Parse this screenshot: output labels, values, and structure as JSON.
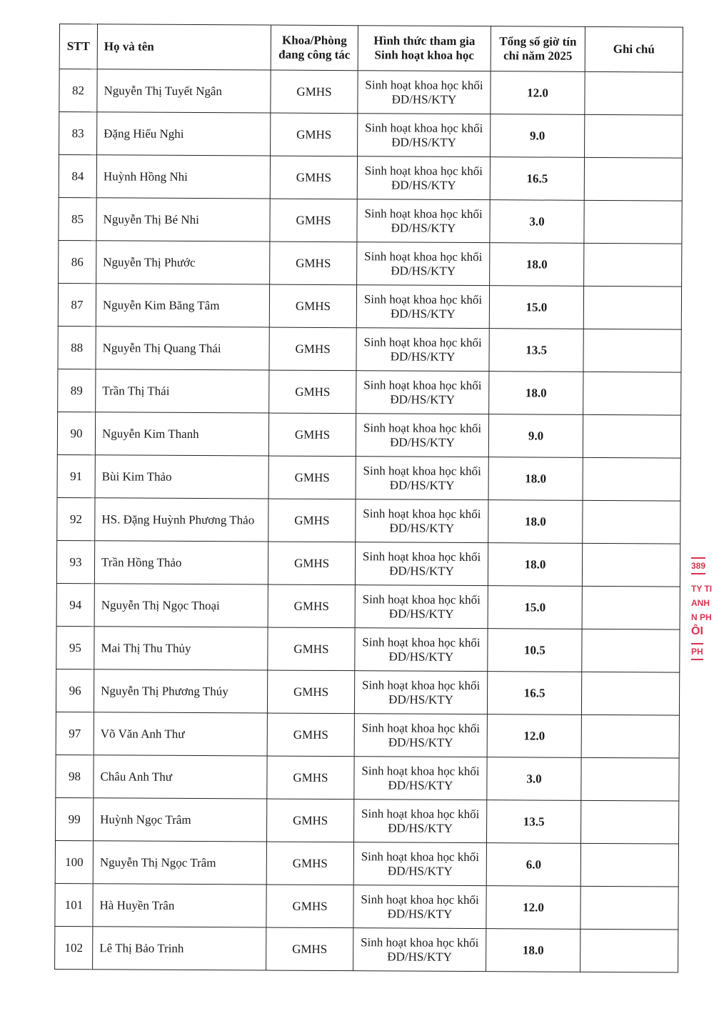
{
  "table": {
    "headers": {
      "stt": "STT",
      "name": "Họ và tên",
      "dept": "Khoa/Phòng đang công tác",
      "form": "Hình thức tham gia Sinh hoạt khoa học",
      "hours": "Tổng số giờ tín chỉ năm 2025",
      "note": "Ghi chú"
    },
    "rows": [
      {
        "stt": "82",
        "name": "Nguyễn Thị Tuyết Ngân",
        "dept": "GMHS",
        "form": "Sinh hoạt khoa học khối ĐD/HS/KTY",
        "hours": "12.0",
        "note": ""
      },
      {
        "stt": "83",
        "name": "Đặng Hiếu Nghi",
        "dept": "GMHS",
        "form": "Sinh hoạt khoa học khối ĐD/HS/KTY",
        "hours": "9.0",
        "note": ""
      },
      {
        "stt": "84",
        "name": "Huỳnh Hồng Nhi",
        "dept": "GMHS",
        "form": "Sinh hoạt khoa học khối ĐD/HS/KTY",
        "hours": "16.5",
        "note": ""
      },
      {
        "stt": "85",
        "name": "Nguyễn Thị Bé Nhi",
        "dept": "GMHS",
        "form": "Sinh hoạt khoa học khối ĐD/HS/KTY",
        "hours": "3.0",
        "note": ""
      },
      {
        "stt": "86",
        "name": "Nguyễn Thị Phước",
        "dept": "GMHS",
        "form": "Sinh hoạt khoa học khối ĐD/HS/KTY",
        "hours": "18.0",
        "note": ""
      },
      {
        "stt": "87",
        "name": "Nguyễn Kim Băng Tâm",
        "dept": "GMHS",
        "form": "Sinh hoạt khoa học khối ĐD/HS/KTY",
        "hours": "15.0",
        "note": ""
      },
      {
        "stt": "88",
        "name": "Nguyễn Thị Quang Thái",
        "dept": "GMHS",
        "form": "Sinh hoạt khoa học khối ĐD/HS/KTY",
        "hours": "13.5",
        "note": ""
      },
      {
        "stt": "89",
        "name": "Trần Thị Thái",
        "dept": "GMHS",
        "form": "Sinh hoạt khoa học khối ĐD/HS/KTY",
        "hours": "18.0",
        "note": ""
      },
      {
        "stt": "90",
        "name": "Nguyễn Kim Thanh",
        "dept": "GMHS",
        "form": "Sinh hoạt khoa học khối ĐD/HS/KTY",
        "hours": "9.0",
        "note": ""
      },
      {
        "stt": "91",
        "name": "Bùi Kim Thảo",
        "dept": "GMHS",
        "form": "Sinh hoạt khoa học khối ĐD/HS/KTY",
        "hours": "18.0",
        "note": ""
      },
      {
        "stt": "92",
        "name": "HS. Đặng Huỳnh Phương Thảo",
        "dept": "GMHS",
        "form": "Sinh hoạt khoa học khối ĐD/HS/KTY",
        "hours": "18.0",
        "note": ""
      },
      {
        "stt": "93",
        "name": "Trần Hồng Thảo",
        "dept": "GMHS",
        "form": "Sinh hoạt khoa học khối ĐD/HS/KTY",
        "hours": "18.0",
        "note": ""
      },
      {
        "stt": "94",
        "name": "Nguyễn Thị Ngọc Thoại",
        "dept": "GMHS",
        "form": "Sinh hoạt khoa học khối ĐD/HS/KTY",
        "hours": "15.0",
        "note": ""
      },
      {
        "stt": "95",
        "name": "Mai Thị Thu Thủy",
        "dept": "GMHS",
        "form": "Sinh hoạt khoa học khối ĐD/HS/KTY",
        "hours": "10.5",
        "note": ""
      },
      {
        "stt": "96",
        "name": "Nguyễn Thị Phương Thúy",
        "dept": "GMHS",
        "form": "Sinh hoạt khoa học khối ĐD/HS/KTY",
        "hours": "16.5",
        "note": ""
      },
      {
        "stt": "97",
        "name": "Võ Văn Anh Thư",
        "dept": "GMHS",
        "form": "Sinh hoạt khoa học khối ĐD/HS/KTY",
        "hours": "12.0",
        "note": ""
      },
      {
        "stt": "98",
        "name": "Châu Anh Thư",
        "dept": "GMHS",
        "form": "Sinh hoạt khoa học khối ĐD/HS/KTY",
        "hours": "3.0",
        "note": ""
      },
      {
        "stt": "99",
        "name": "Huỳnh Ngọc Trâm",
        "dept": "GMHS",
        "form": "Sinh hoạt khoa học khối ĐD/HS/KTY",
        "hours": "13.5",
        "note": ""
      },
      {
        "stt": "100",
        "name": "Nguyễn Thị Ngọc Trâm",
        "dept": "GMHS",
        "form": "Sinh hoạt khoa học khối ĐD/HS/KTY",
        "hours": "6.0",
        "note": ""
      },
      {
        "stt": "101",
        "name": "Hà Huyền Trân",
        "dept": "GMHS",
        "form": "Sinh hoạt khoa học khối ĐD/HS/KTY",
        "hours": "12.0",
        "note": ""
      },
      {
        "stt": "102",
        "name": "Lê Thị Bảo Trinh",
        "dept": "GMHS",
        "form": "Sinh hoạt khoa học khối ĐD/HS/KTY",
        "hours": "18.0",
        "note": ""
      }
    ]
  },
  "stamp": {
    "lines": [
      "389",
      "TY TI",
      "ANH",
      "N PH",
      "ÔI",
      "PH"
    ],
    "color": "#d8324e"
  }
}
